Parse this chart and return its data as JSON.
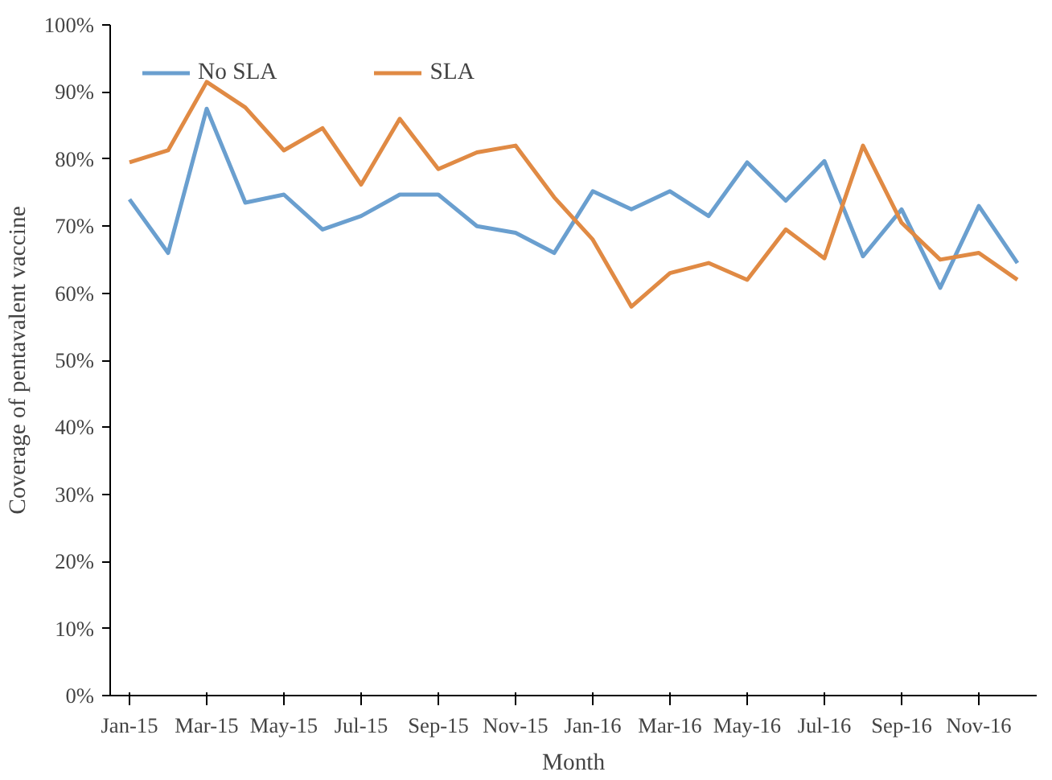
{
  "chart_data": {
    "type": "line",
    "xlabel": "Month",
    "ylabel": "Coverage of pentavalent vaccine",
    "categories": [
      "Jan-15",
      null,
      "Mar-15",
      null,
      "May-15",
      null,
      "Jul-15",
      null,
      "Sep-15",
      null,
      "Nov-15",
      null,
      "Jan-16",
      null,
      "Mar-16",
      null,
      "May-16",
      null,
      "Jul-16",
      null,
      "Sep-16",
      null,
      "Nov-16",
      null
    ],
    "series": [
      {
        "name": "No SLA",
        "color": "#6a9fcf",
        "values": [
          74,
          66,
          87.5,
          73.5,
          74.7,
          69.5,
          71.5,
          74.7,
          74.7,
          70,
          69,
          66,
          75.2,
          72.5,
          75.2,
          71.5,
          79.5,
          73.8,
          79.7,
          65.5,
          72.5,
          60.8,
          73,
          64.5
        ]
      },
      {
        "name": "SLA",
        "color": "#e08a44",
        "values": [
          79.5,
          81.3,
          91.5,
          87.7,
          81.3,
          84.6,
          76.2,
          86,
          78.5,
          81,
          82,
          74.3,
          68,
          58,
          63,
          64.5,
          62,
          69.5,
          65.2,
          82,
          70.5,
          65,
          66,
          62
        ]
      }
    ],
    "ylim": [
      0,
      100
    ],
    "yticks": [
      {
        "value": 0,
        "label": "0%"
      },
      {
        "value": 10,
        "label": "10%"
      },
      {
        "value": 20,
        "label": "20%"
      },
      {
        "value": 30,
        "label": "30%"
      },
      {
        "value": 40,
        "label": "40%"
      },
      {
        "value": 50,
        "label": "50%"
      },
      {
        "value": 60,
        "label": "60%"
      },
      {
        "value": 70,
        "label": "70%"
      },
      {
        "value": 80,
        "label": "80%"
      },
      {
        "value": 90,
        "label": "90%"
      },
      {
        "value": 100,
        "label": "100%"
      }
    ],
    "grid": false,
    "legend": "top left",
    "marker": "none",
    "line_style": "solid"
  }
}
